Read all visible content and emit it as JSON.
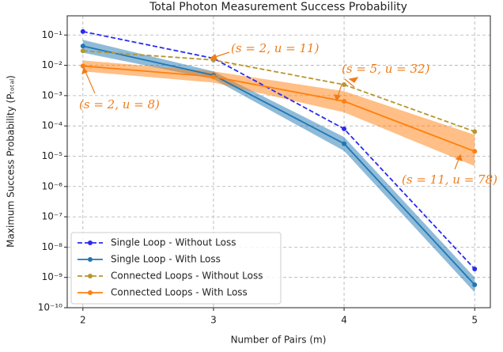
{
  "chart_data": {
    "type": "line",
    "title": "Total Photon Measurement Success Probability",
    "xlabel": "Number of Pairs (m)",
    "ylabel": "Maximum Success Probability (Pₜₒₜₐₗ)",
    "x": [
      2,
      3,
      4,
      5
    ],
    "xlim": [
      1.88,
      5.12
    ],
    "xticks": [
      2,
      3,
      4,
      5
    ],
    "ylim": [
      1e-10,
      0.43
    ],
    "log_y": true,
    "yticks": [
      {
        "value": 1e-10,
        "label": "10⁻¹⁰"
      },
      {
        "value": 1e-09,
        "label": "10⁻⁹"
      },
      {
        "value": 1e-08,
        "label": "10⁻⁸"
      },
      {
        "value": 1e-07,
        "label": "10⁻⁷"
      },
      {
        "value": 1e-06,
        "label": "10⁻⁶"
      },
      {
        "value": 1e-05,
        "label": "10⁻⁵"
      },
      {
        "value": 0.0001,
        "label": "10⁻⁴"
      },
      {
        "value": 0.001,
        "label": "10⁻³"
      },
      {
        "value": 0.01,
        "label": "10⁻²"
      },
      {
        "value": 0.1,
        "label": "10⁻¹"
      }
    ],
    "grid": true,
    "legend": "lower left",
    "series": [
      {
        "name": "Single Loop - Without Loss",
        "color": "#2b2bef",
        "dashed": true,
        "values": [
          0.13,
          0.017,
          8e-05,
          1.9e-09
        ]
      },
      {
        "name": "Single Loop - With Loss",
        "color": "#1f77b4",
        "dashed": false,
        "values": [
          0.043,
          0.0047,
          2.6e-05,
          5.7e-10
        ],
        "lower": [
          0.026,
          0.0035,
          1.5e-05,
          3.2e-10
        ],
        "upper": [
          0.069,
          0.0063,
          4.3e-05,
          1e-09
        ]
      },
      {
        "name": "Connected Loops - Without Loss",
        "color": "#b8962e",
        "dashed": true,
        "values": [
          0.03,
          0.015,
          0.0023,
          6.5e-05
        ]
      },
      {
        "name": "Connected Loops - With Loss",
        "color": "#ff7f0e",
        "dashed": false,
        "values": [
          0.0095,
          0.0042,
          0.00065,
          1.45e-05
        ],
        "lower": [
          0.0063,
          0.0027,
          0.00028,
          4.7e-06
        ],
        "upper": [
          0.0145,
          0.0063,
          0.0014,
          5.1e-05
        ]
      }
    ],
    "annotations": [
      "(s = 2, u = 11)",
      "(s = 2, u = 8)",
      "(s = 5, u = 32)",
      "(s = 11, u = 78)"
    ]
  }
}
